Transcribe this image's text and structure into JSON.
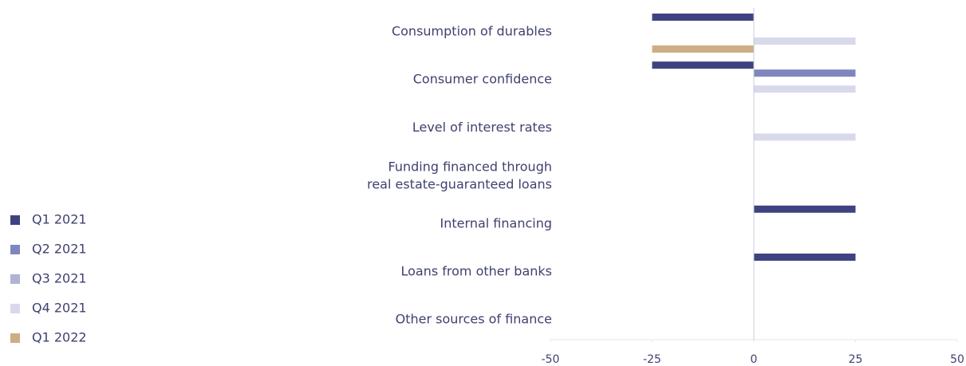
{
  "chart_data": {
    "type": "hbar",
    "categories": [
      "Consumption of durables",
      "Consumer confidence",
      "Level of interest rates",
      "Funding financed through\nreal estate-guaranteed loans",
      "Internal financing",
      "Loans from other banks",
      "Other sources of finance"
    ],
    "series": [
      {
        "name": "Q1 2021",
        "color": "#3f4280",
        "values": [
          -25,
          -25,
          0,
          0,
          25,
          25,
          0
        ]
      },
      {
        "name": "Q2 2021",
        "color": "#7f86bf",
        "values": [
          0,
          25,
          0,
          0,
          0,
          0,
          0
        ]
      },
      {
        "name": "Q3 2021",
        "color": "#b0b2d6",
        "values": [
          0,
          0,
          0,
          0,
          0,
          0,
          0
        ]
      },
      {
        "name": "Q4 2021",
        "color": "#d8d9eb",
        "values": [
          25,
          25,
          25,
          0,
          0,
          0,
          0
        ]
      },
      {
        "name": "Q1 2022",
        "color": "#cdae84",
        "values": [
          -25,
          0,
          0,
          0,
          0,
          0,
          0
        ]
      }
    ],
    "xlim": [
      -50,
      50
    ],
    "xticks": [
      -50,
      -25,
      0,
      25,
      50
    ],
    "legend": "left"
  }
}
